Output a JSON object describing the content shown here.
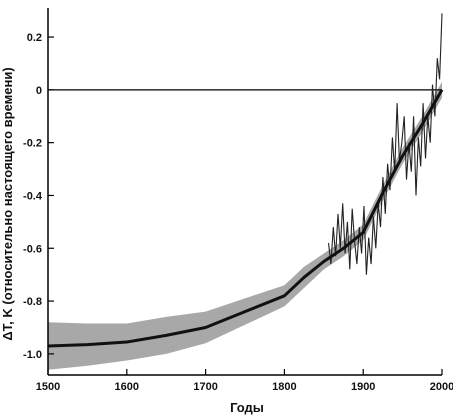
{
  "chart_data": {
    "type": "line",
    "title": "",
    "xlabel": "Годы",
    "ylabel": "ΔT, K (относительно настоящего времени)",
    "xlim": [
      1500,
      2000
    ],
    "ylim": [
      -1.08,
      0.31
    ],
    "x_ticks": [
      {
        "value": 1500,
        "label": "1500"
      },
      {
        "value": 1600,
        "label": "1600"
      },
      {
        "value": 1700,
        "label": "1700"
      },
      {
        "value": 1800,
        "label": "1800"
      },
      {
        "value": 1900,
        "label": "1900"
      },
      {
        "value": 2000,
        "label": "2000"
      }
    ],
    "y_ticks": [
      {
        "value": 0.2,
        "label": "0.2"
      },
      {
        "value": 0,
        "label": "0"
      },
      {
        "value": -0.2,
        "label": "-0.2"
      },
      {
        "value": -0.4,
        "label": "-0.4"
      },
      {
        "value": -0.6,
        "label": "-0.6"
      },
      {
        "value": -0.8,
        "label": "-0.8"
      },
      {
        "value": -1.0,
        "label": "-1.0"
      }
    ],
    "reference_line": {
      "y": 0
    },
    "grid": false,
    "colors": {
      "trend": "#111111",
      "band": "#a8a8a8",
      "instrumental": "#222222",
      "axis": "#000000"
    },
    "series": [
      {
        "kind": "trend",
        "x": [
          1500,
          1550,
          1600,
          1650,
          1700,
          1750,
          1800,
          1825,
          1850,
          1875,
          1900,
          1925,
          1950,
          1975,
          2000
        ],
        "y": [
          -0.97,
          -0.965,
          -0.955,
          -0.93,
          -0.9,
          -0.84,
          -0.78,
          -0.71,
          -0.65,
          -0.6,
          -0.54,
          -0.39,
          -0.25,
          -0.13,
          0.0
        ]
      },
      {
        "kind": "uncertainty_band",
        "x": [
          1500,
          1550,
          1600,
          1650,
          1700,
          1750,
          1800,
          1825,
          1850,
          1875,
          1900,
          1925,
          1950,
          1975,
          2000
        ],
        "upper": [
          -0.88,
          -0.885,
          -0.885,
          -0.86,
          -0.84,
          -0.79,
          -0.74,
          -0.67,
          -0.62,
          -0.57,
          -0.51,
          -0.36,
          -0.22,
          -0.1,
          0.03
        ],
        "lower": [
          -1.06,
          -1.045,
          -1.025,
          -1.0,
          -0.96,
          -0.89,
          -0.82,
          -0.75,
          -0.68,
          -0.63,
          -0.57,
          -0.42,
          -0.28,
          -0.16,
          -0.03
        ]
      },
      {
        "kind": "instrumental",
        "x": [
          1856,
          1859,
          1862,
          1865,
          1868,
          1871,
          1874,
          1877,
          1880,
          1883,
          1886,
          1889,
          1892,
          1895,
          1898,
          1901,
          1904,
          1907,
          1910,
          1913,
          1916,
          1919,
          1922,
          1925,
          1928,
          1931,
          1934,
          1937,
          1940,
          1943,
          1946,
          1949,
          1952,
          1955,
          1958,
          1961,
          1964,
          1967,
          1970,
          1973,
          1976,
          1979,
          1982,
          1985,
          1988,
          1991,
          1994,
          1997,
          2000
        ],
        "y": [
          -0.58,
          -0.66,
          -0.52,
          -0.63,
          -0.47,
          -0.6,
          -0.43,
          -0.62,
          -0.5,
          -0.68,
          -0.45,
          -0.57,
          -0.66,
          -0.52,
          -0.62,
          -0.44,
          -0.7,
          -0.56,
          -0.66,
          -0.48,
          -0.6,
          -0.43,
          -0.52,
          -0.33,
          -0.47,
          -0.28,
          -0.38,
          -0.18,
          -0.31,
          -0.05,
          -0.27,
          -0.2,
          -0.1,
          -0.34,
          -0.2,
          -0.31,
          -0.1,
          -0.4,
          -0.18,
          -0.29,
          -0.05,
          -0.26,
          -0.1,
          -0.2,
          0.02,
          -0.1,
          0.12,
          0.04,
          0.29
        ]
      }
    ]
  }
}
